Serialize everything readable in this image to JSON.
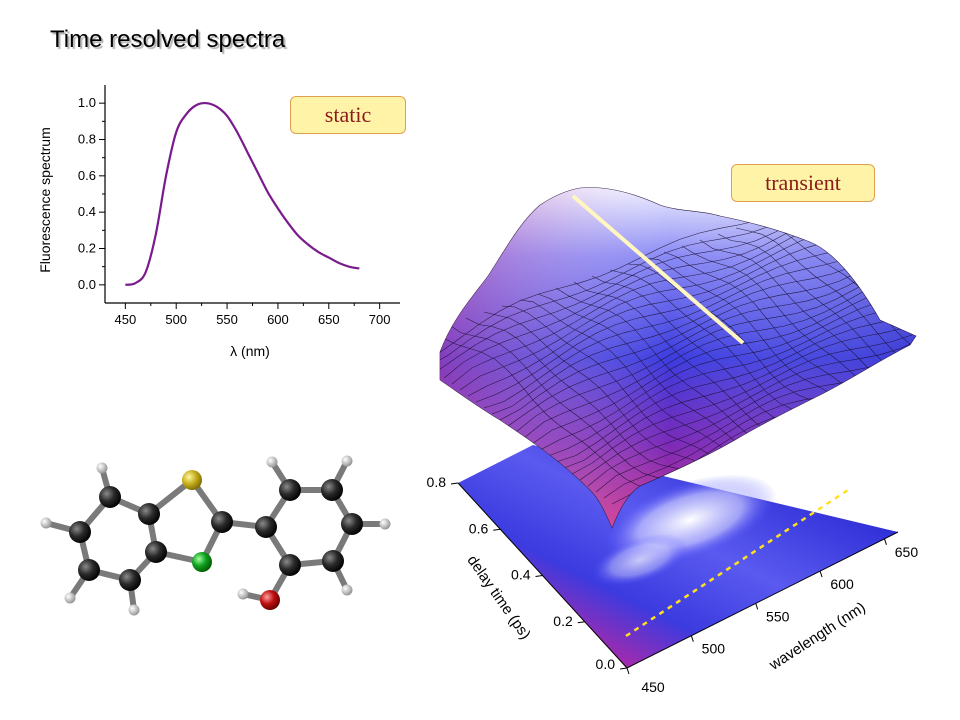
{
  "title": "Time resolved spectra",
  "tags": {
    "static": "static",
    "transient": "transient"
  },
  "chart_data": [
    {
      "type": "line",
      "xlabel": "λ (nm)",
      "ylabel": "Fluorescence spectrum",
      "xlim": [
        430,
        720
      ],
      "ylim": [
        -0.1,
        1.1
      ],
      "x_ticks": [
        "450",
        "500",
        "550",
        "600",
        "650",
        "700"
      ],
      "y_ticks": [
        "0.0",
        "0.2",
        "0.4",
        "0.6",
        "0.8",
        "1.0"
      ],
      "color": "#7a1a8c",
      "series": [
        {
          "x": [
            450,
            460,
            470,
            480,
            490,
            500,
            510,
            520,
            530,
            540,
            550,
            560,
            570,
            580,
            590,
            600,
            610,
            620,
            630,
            640,
            650,
            660,
            670,
            680
          ],
          "y": [
            0.0,
            0.01,
            0.07,
            0.28,
            0.6,
            0.84,
            0.94,
            0.99,
            1.0,
            0.98,
            0.93,
            0.84,
            0.73,
            0.62,
            0.51,
            0.42,
            0.34,
            0.27,
            0.22,
            0.18,
            0.15,
            0.12,
            0.1,
            0.09
          ]
        }
      ]
    },
    {
      "type": "surface",
      "xlabel": "wavelength (nm)",
      "ylabel": "delay time (ps)",
      "x_ticks": [
        "450",
        "500",
        "550",
        "600",
        "650"
      ],
      "y_ticks": [
        "0.0",
        "0.2",
        "0.4",
        "0.6",
        "0.8"
      ],
      "colormap": [
        "#7a1dff",
        "#3b3be0",
        "#c2259e",
        "#ff2f82",
        "#ffffff"
      ]
    }
  ],
  "molecule": {
    "atoms": [
      "carbon",
      "sulfur",
      "nitrogen",
      "oxygen",
      "hydrogen"
    ]
  }
}
